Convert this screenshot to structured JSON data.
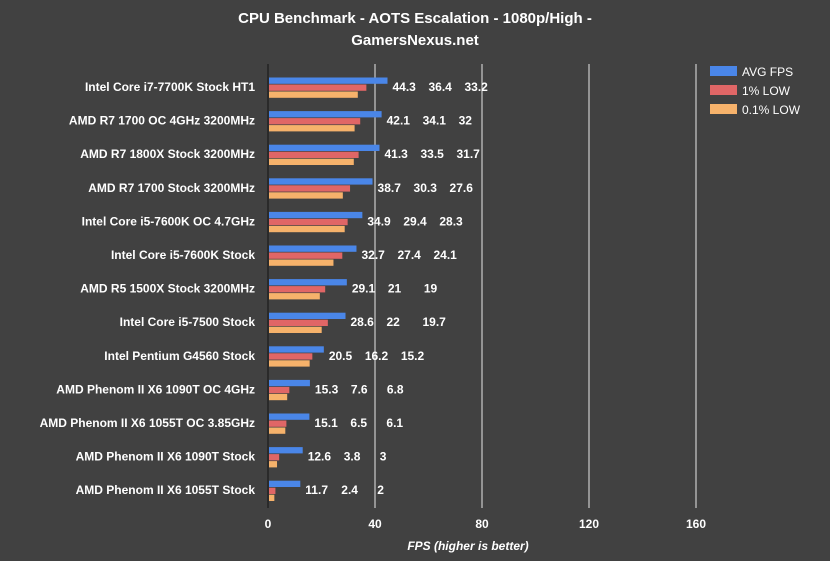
{
  "chart_data": {
    "type": "bar",
    "orientation": "horizontal",
    "title_line1": "CPU Benchmark - AOTS Escalation - 1080p/High -",
    "title_line2": "GamersNexus.net",
    "xlabel": "FPS (higher is better)",
    "ylabel": "",
    "xlim": [
      0,
      200
    ],
    "xticks": [
      "0",
      "40",
      "80",
      "120",
      "160"
    ],
    "grid": true,
    "legend_position": "top-right",
    "categories": [
      "Intel Core i7-7700K Stock HT1",
      "AMD R7 1700 OC 4GHz 3200MHz",
      "AMD R7 1800X Stock 3200MHz",
      "AMD R7 1700 Stock 3200MHz",
      "Intel Core i5-7600K OC 4.7GHz",
      "Intel Core i5-7600K Stock",
      "AMD R5 1500X Stock 3200MHz",
      "Intel Core i5-7500 Stock",
      "Intel Pentium G4560 Stock",
      "AMD Phenom II X6 1090T OC 4GHz",
      "AMD Phenom II X6 1055T OC 3.85GHz",
      "AMD Phenom II X6 1090T Stock",
      "AMD Phenom II X6 1055T Stock"
    ],
    "series": [
      {
        "name": "AVG FPS",
        "color": "#4a86e8",
        "values": [
          44.3,
          42.1,
          41.3,
          38.7,
          34.9,
          32.7,
          29.1,
          28.6,
          20.5,
          15.3,
          15.1,
          12.6,
          11.7
        ]
      },
      {
        "name": "1% LOW",
        "color": "#e06666",
        "values": [
          36.4,
          34.1,
          33.5,
          30.3,
          29.4,
          27.4,
          21,
          22.0,
          16.2,
          7.6,
          6.5,
          3.8,
          2.4
        ]
      },
      {
        "name": "0.1% LOW",
        "color": "#f6b26b",
        "values": [
          33.2,
          32,
          31.7,
          27.6,
          28.3,
          24.1,
          19,
          19.7,
          15.2,
          6.8,
          6.1,
          3,
          2
        ]
      }
    ]
  }
}
